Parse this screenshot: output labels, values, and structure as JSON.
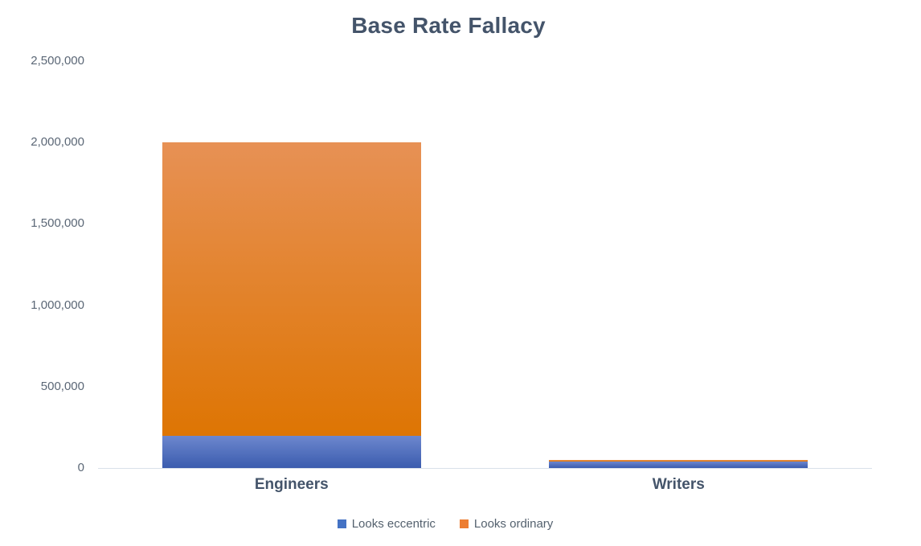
{
  "title": "Base Rate Fallacy",
  "colors": {
    "title_text": "#44546A",
    "axis_tick_text": "#5B6776",
    "category_label_text": "#44546A",
    "legend_text": "#54616E",
    "axis_line": "#D9E1EA",
    "series_blue": "#4472C4",
    "series_orange": "#ED7D31"
  },
  "chart_data": {
    "type": "bar",
    "stacked": true,
    "title": "Base Rate Fallacy",
    "categories": [
      "Engineers",
      "Writers"
    ],
    "series": [
      {
        "name": "Looks eccentric",
        "legend_color": "#4472C4",
        "gradient_top": "#6D87CE",
        "gradient_bottom": "#3B5CAE",
        "values": [
          200000,
          40000
        ]
      },
      {
        "name": "Looks ordinary",
        "legend_color": "#ED7D31",
        "gradient_top": "#E79155",
        "gradient_bottom": "#DE7503",
        "values": [
          1800000,
          10000
        ]
      }
    ],
    "xlabel": "",
    "ylabel": "",
    "ylim": [
      0,
      2500000
    ],
    "yticks": [
      {
        "value": 0,
        "label": "0"
      },
      {
        "value": 500000,
        "label": "500,000"
      },
      {
        "value": 1000000,
        "label": "1,000,000"
      },
      {
        "value": 1500000,
        "label": "1,500,000"
      },
      {
        "value": 2000000,
        "label": "2,000,000"
      },
      {
        "value": 2500000,
        "label": "2,500,000"
      }
    ],
    "grid": false,
    "legend_position": "bottom"
  }
}
